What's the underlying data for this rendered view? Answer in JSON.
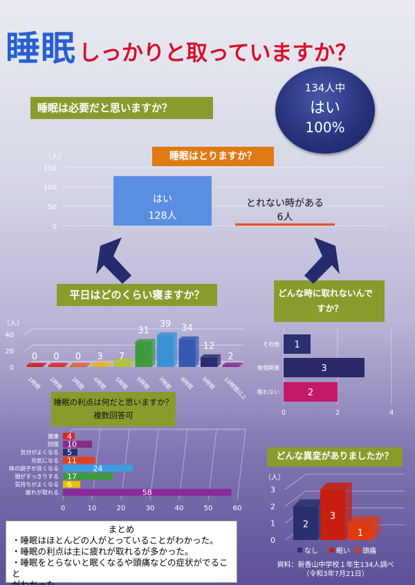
{
  "title": {
    "big": "睡眠",
    "rest": "しっかりと取っていますか？"
  },
  "q1": {
    "question": "睡眠は必要だと思いますか？",
    "total": "134人中",
    "answer": "はい",
    "percent": "100%"
  },
  "q2": {
    "question": "睡眠はとりますか？"
  },
  "q3": {
    "question": "平日はどのくらい寝ますか？"
  },
  "q4": {
    "question_l1": "どんな時に取れないんで",
    "question_l2": "すか？"
  },
  "q5": {
    "question": "睡眠の利点は何だと思いますか？",
    "sub": "複数回答可"
  },
  "q6": {
    "question": "どんな異変がありましたか？"
  },
  "summary": {
    "heading": "まとめ",
    "lines": [
      "・睡眠はほとんどの人がとっていることがわかった。",
      "・睡眠の利点は主に疲れが取れるが多かった。",
      "・睡眠をとらないと眠くなるや頭痛などの症状がでること",
      "がわかった。"
    ]
  },
  "source": {
    "line1": "資料：新香山中学校１年生134人調べ",
    "line2": "（令和3年7月21日）"
  },
  "chart_data": [
    {
      "type": "bar",
      "title": "睡眠はとりますか？",
      "ylabel": "（人）",
      "ylim": [
        0,
        150
      ],
      "yticks": [
        0,
        50,
        100,
        150
      ],
      "categories": [
        "はい",
        "とれない時がある"
      ],
      "values": [
        128,
        6
      ],
      "value_labels": [
        "128人",
        "6人"
      ],
      "colors": [
        "#5a8ee0",
        "#e05a28"
      ]
    },
    {
      "type": "bar",
      "title": "平日はどのくらい寝ますか？",
      "ylabel": "（人）",
      "ylim": [
        0,
        40
      ],
      "yticks": [
        0,
        20,
        40
      ],
      "categories": [
        "1時間",
        "2時間",
        "3時間",
        "4時間",
        "5時間",
        "6時間",
        "7時間",
        "8時間",
        "9時間",
        "10時間以上"
      ],
      "values": [
        0,
        0,
        0,
        3,
        7,
        31,
        39,
        34,
        12,
        2
      ],
      "colors": [
        "#c81e24",
        "#d6282a",
        "#e0622c",
        "#e8b422",
        "#b2c43a",
        "#3f9a3c",
        "#3a92d6",
        "#3658b0",
        "#2a2e70",
        "#8a2a8e"
      ]
    },
    {
      "type": "bar",
      "orientation": "horizontal",
      "title": "どんな時に取れないんですか？",
      "xlim": [
        0,
        4
      ],
      "xticks": [
        0,
        2,
        4
      ],
      "categories": [
        "その他",
        "勉強関連",
        "眠れない"
      ],
      "values": [
        1,
        3,
        2
      ],
      "colors": [
        "#2a3070",
        "#2a2a6a",
        "#c4186a"
      ]
    },
    {
      "type": "bar",
      "orientation": "horizontal",
      "title": "睡眠の利点は何だと思いますか？",
      "subtitle": "複数回答可",
      "xlim": [
        0,
        60
      ],
      "xticks": [
        0,
        10,
        20,
        30,
        40,
        50,
        60
      ],
      "categories": [
        "健康",
        "回復",
        "気分がよくなる",
        "元気になる",
        "体の調子が良くなる",
        "頭がすっきりする",
        "気持ちがよくなる",
        "疲れが取れる"
      ],
      "values": [
        4,
        10,
        5,
        11,
        24,
        17,
        6,
        58
      ],
      "colors": [
        "#d02a28",
        "#882a88",
        "#2a2e70",
        "#e0401e",
        "#3a9ee0",
        "#3f9a3c",
        "#e8c000",
        "#8a2a9a"
      ]
    },
    {
      "type": "bar",
      "title": "どんな異変がありましたか？",
      "ylabel": "（人）",
      "ylim": [
        0,
        3
      ],
      "yticks": [
        0,
        1,
        2,
        3
      ],
      "categories": [
        "なし",
        "眠い",
        "頭痛"
      ],
      "values": [
        2,
        3,
        1
      ],
      "colors": [
        "#2a2e6e",
        "#c81e10",
        "#e03a10"
      ]
    }
  ]
}
